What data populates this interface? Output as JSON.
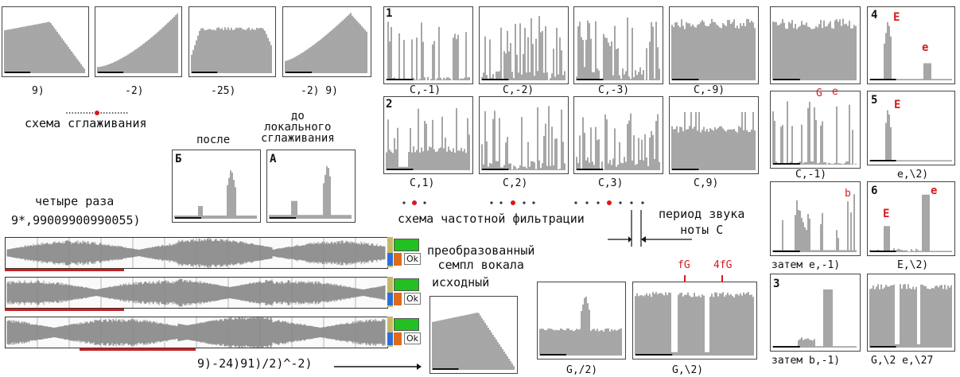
{
  "tl_captions": [
    "9)",
    "-2)",
    "-25)",
    "-2)  9)"
  ],
  "smoothing_scheme": "схема сглаживания",
  "after_label": "после",
  "before_label": "до\nлокального\nсглаживания",
  "box_b": "Б",
  "box_a": "А",
  "four_times": "четыре раза",
  "number_line": "9*,99009900990055)",
  "row1_label": "1",
  "row1_captions": [
    "C,-1)",
    "C,-2)",
    "C,-3)",
    "C,-9)"
  ],
  "row2_label": "2",
  "row2_captions": [
    "C,1)",
    "C,2)",
    "C,3)",
    "C,9)"
  ],
  "freq_scheme": "схема частотной фильтрации",
  "period_label": "период звука\nноты C",
  "transformed_label": "преобразованный\nсемпл вокала",
  "source_label": "исходный",
  "ok": "Ok",
  "formula": "9)-24)91)/2)^-2)",
  "bottom_captions": [
    "G,/2)",
    "G,\\2)"
  ],
  "fg": "fG",
  "fg4": "4fG",
  "col3_captions": [
    "C,-1)",
    "затем e,-1)",
    "затем b,-1)"
  ],
  "col3_num": "3",
  "col3_markers": {
    "g": "G",
    "e": "e",
    "b": "b"
  },
  "col4_labels": [
    "4",
    "5",
    "6"
  ],
  "col4_captions": [
    "e,\\2)",
    "E,\\2)",
    "G,\\2 e,\\27"
  ],
  "markers": {
    "E": "E",
    "e": "e"
  },
  "colors": {
    "red": "#d61a1a",
    "green": "#22c022",
    "blue": "#2a6fd6",
    "orange": "#e06a1a"
  }
}
